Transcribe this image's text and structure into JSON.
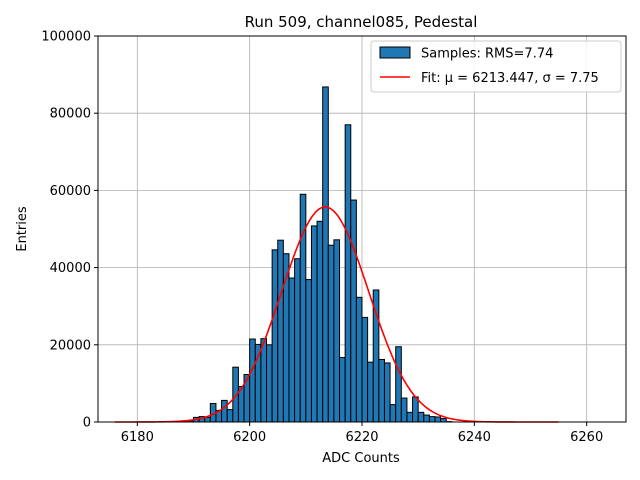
{
  "chart_data": {
    "type": "bar",
    "title": "Run 509, channel085, Pedestal",
    "xlabel": "ADC Counts",
    "ylabel": "Entries",
    "xlim": [
      6173,
      6267
    ],
    "ylim": [
      0,
      100000
    ],
    "xticks": [
      "6180",
      "6200",
      "6220",
      "6240",
      "6260"
    ],
    "xtick_values": [
      6180,
      6200,
      6220,
      6240,
      6260
    ],
    "yticks": [
      "0",
      "20000",
      "40000",
      "60000",
      "80000",
      "100000"
    ],
    "ytick_values": [
      0,
      20000,
      40000,
      60000,
      80000,
      100000
    ],
    "grid": true,
    "legend_position": "top-right",
    "bar_color": "#1f77b4",
    "fit_color": "#ff0000",
    "bin_width": 1,
    "bin_start": 6189,
    "series": [
      {
        "name": "Samples: RMS=7.74",
        "type": "histogram",
        "values": [
          300,
          1200,
          1400,
          1200,
          4800,
          3000,
          5600,
          3200,
          14200,
          9200,
          12300,
          21500,
          20100,
          21600,
          20000,
          44600,
          47100,
          43600,
          37300,
          42300,
          59000,
          36900,
          50800,
          52000,
          86800,
          45800,
          47200,
          16700,
          77000,
          57500,
          32300,
          27100,
          15500,
          34200,
          16200,
          15300,
          4500,
          19500,
          6200,
          2500,
          6500,
          2500,
          1800,
          1400,
          1300,
          900,
          100
        ]
      },
      {
        "name": "Fit: μ = 6213.447, σ = 7.75",
        "type": "gaussian-fit",
        "mu": 6213.447,
        "sigma": 7.75,
        "amplitude": 55700,
        "x_range": [
          6176,
          6255
        ]
      }
    ]
  }
}
